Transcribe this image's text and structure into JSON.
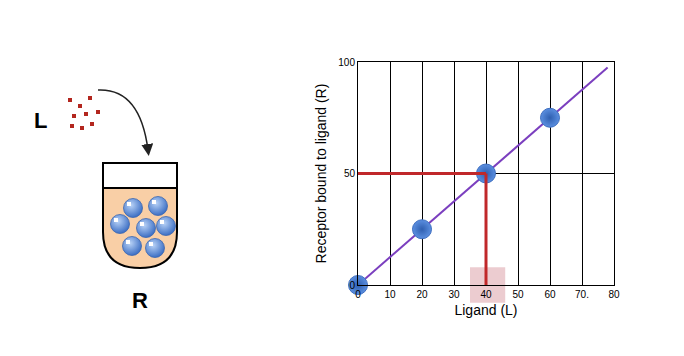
{
  "chart_data": {
    "type": "scatter",
    "x": [
      0,
      20,
      40,
      60
    ],
    "values": [
      0,
      25,
      50,
      75
    ],
    "color": "#5b8fe0",
    "marker": "circle",
    "fit_line": {
      "x": [
        0,
        78
      ],
      "values": [
        0,
        97.5
      ],
      "color": "#7b3fbf"
    },
    "highlight": {
      "x": 40,
      "y": 50,
      "x_band": [
        35,
        46
      ],
      "color": "#c0282a"
    },
    "xlabel": "Ligand (L)",
    "ylabel": "Receptor bound to ligand (R)",
    "xlim": [
      0,
      80
    ],
    "ylim": [
      0,
      100
    ],
    "xticks": [
      0,
      10,
      20,
      30,
      40,
      50,
      60,
      {
        "value": 70,
        "label": "70."
      },
      80
    ],
    "yticks": [
      0,
      50,
      100
    ],
    "grid": true
  },
  "diagram": {
    "ligand_label": "L",
    "receptor_label": "R"
  }
}
